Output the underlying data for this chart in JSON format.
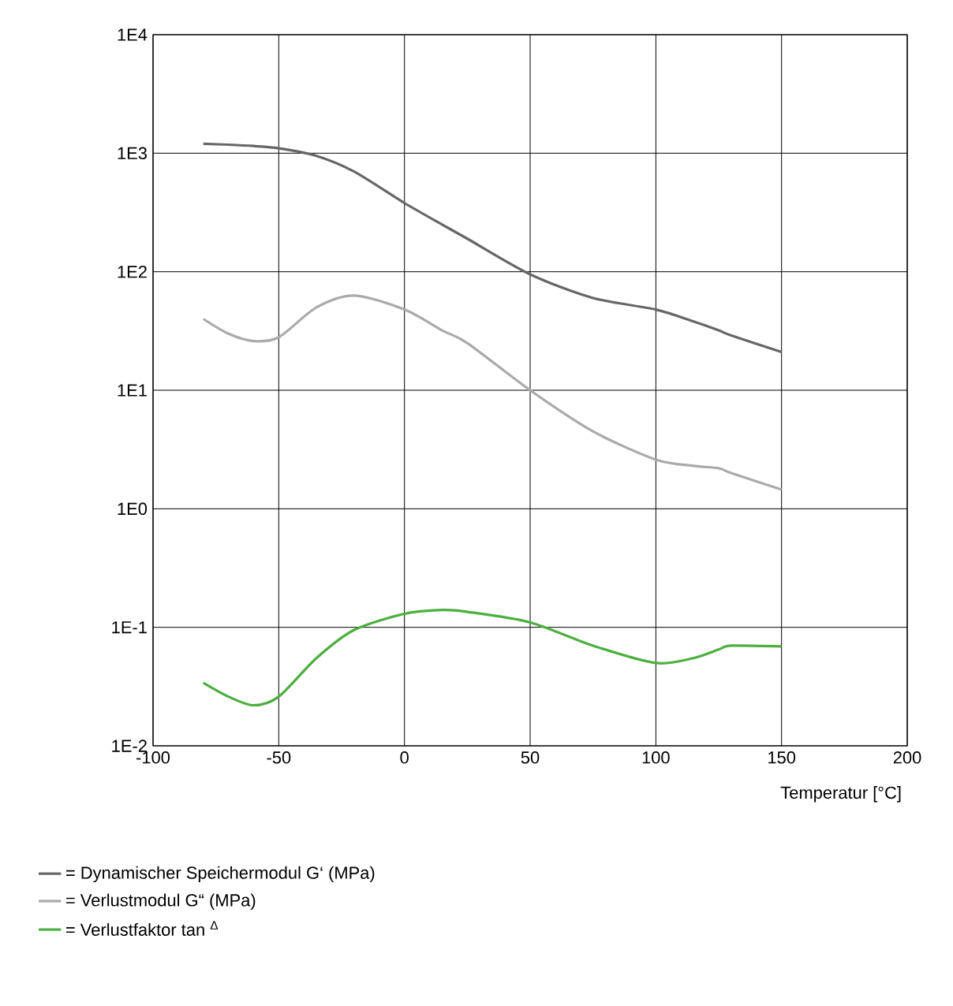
{
  "chart_data": {
    "type": "line",
    "xlabel": "Temperatur [°C]",
    "log": "y",
    "grid": true,
    "legend": "bottom",
    "xlim": [
      -100,
      200
    ],
    "xticks": [
      -100,
      -50,
      0,
      50,
      100,
      150,
      200
    ],
    "ylim": [
      0.01,
      10000
    ],
    "yticks": [
      {
        "value": 10000,
        "label": "1E4"
      },
      {
        "value": 1000,
        "label": "1E3"
      },
      {
        "value": 100,
        "label": "1E2"
      },
      {
        "value": 10,
        "label": "1E1"
      },
      {
        "value": 1,
        "label": "1E0"
      },
      {
        "value": 0.1,
        "label": "1E-1"
      },
      {
        "value": 0.01,
        "label": "1E-2"
      }
    ],
    "x": [
      -80,
      -70,
      -60,
      -50,
      -35,
      -20,
      0,
      15,
      25,
      50,
      75,
      100,
      115,
      125,
      130,
      150
    ],
    "series": [
      {
        "name": "= Dynamischer Speichermodul G‘ (MPa)",
        "color": "#666666",
        "values": [
          1200,
          1180,
          1150,
          1100,
          950,
          700,
          380,
          250,
          190,
          95,
          60,
          48,
          38,
          32,
          29,
          21
        ]
      },
      {
        "name": "= Verlustmodul G“ (MPa)",
        "color": "#aaaaaa",
        "values": [
          40,
          30,
          26,
          28,
          50,
          63,
          48,
          32,
          25,
          10,
          4.5,
          2.6,
          2.3,
          2.2,
          2.0,
          1.45
        ]
      },
      {
        "name": "= Verlustfaktor tan $^{Δ}$",
        "color": "#4caf3f",
        "values": [
          0.034,
          0.026,
          0.022,
          0.026,
          0.055,
          0.095,
          0.13,
          0.14,
          0.135,
          0.11,
          0.07,
          0.05,
          0.055,
          0.065,
          0.07,
          0.069
        ]
      }
    ]
  }
}
